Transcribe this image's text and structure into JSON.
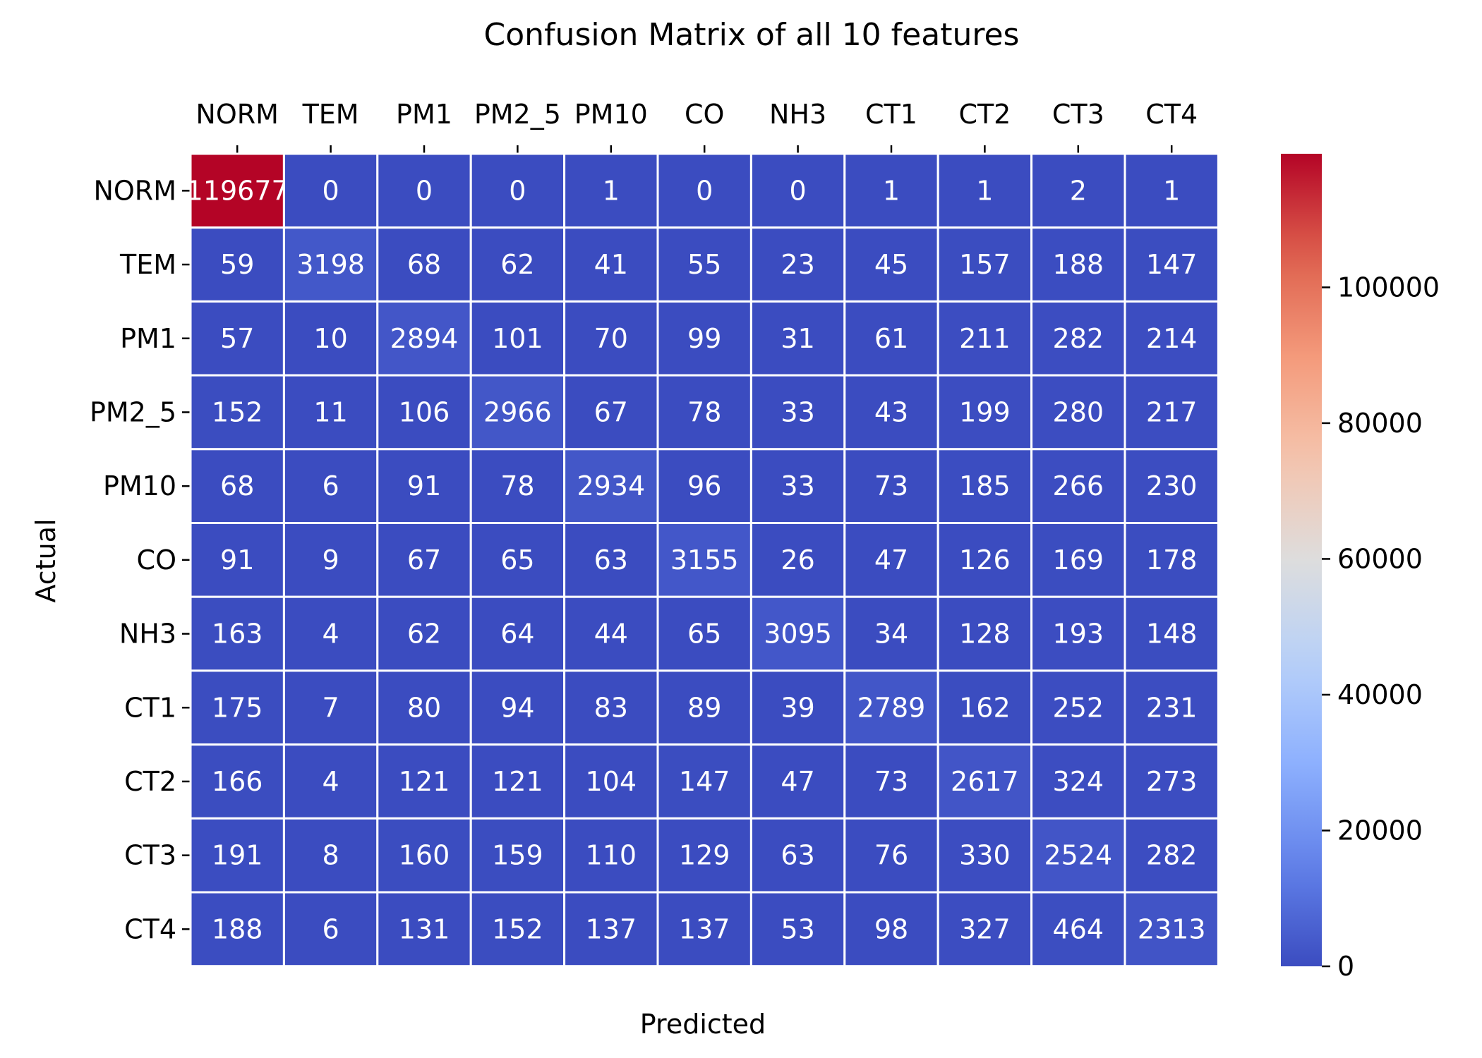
{
  "chart_data": {
    "type": "heatmap",
    "title": "Confusion Matrix of all 10 features",
    "xlabel": "Predicted",
    "ylabel": "Actual",
    "x_categories": [
      "NORM",
      "TEM",
      "PM1",
      "PM2_5",
      "PM10",
      "CO",
      "NH3",
      "CT1",
      "CT2",
      "CT3",
      "CT4"
    ],
    "y_categories": [
      "NORM",
      "TEM",
      "PM1",
      "PM2_5",
      "PM10",
      "CO",
      "NH3",
      "CT1",
      "CT2",
      "CT3",
      "CT4"
    ],
    "x_tick_position": "top",
    "matrix": [
      [
        119677,
        0,
        0,
        0,
        1,
        0,
        0,
        1,
        1,
        2,
        1
      ],
      [
        59,
        3198,
        68,
        62,
        41,
        55,
        23,
        45,
        157,
        188,
        147
      ],
      [
        57,
        10,
        2894,
        101,
        70,
        99,
        31,
        61,
        211,
        282,
        214
      ],
      [
        152,
        11,
        106,
        2966,
        67,
        78,
        33,
        43,
        199,
        280,
        217
      ],
      [
        68,
        6,
        91,
        78,
        2934,
        96,
        33,
        73,
        185,
        266,
        230
      ],
      [
        91,
        9,
        67,
        65,
        63,
        3155,
        26,
        47,
        126,
        169,
        178
      ],
      [
        163,
        4,
        62,
        64,
        44,
        65,
        3095,
        34,
        128,
        193,
        148
      ],
      [
        175,
        7,
        80,
        94,
        83,
        89,
        39,
        2789,
        162,
        252,
        231
      ],
      [
        166,
        4,
        121,
        121,
        104,
        147,
        47,
        73,
        2617,
        324,
        273
      ],
      [
        191,
        8,
        160,
        159,
        110,
        129,
        63,
        76,
        330,
        2524,
        282
      ],
      [
        188,
        6,
        131,
        152,
        137,
        137,
        53,
        98,
        327,
        464,
        2313
      ]
    ],
    "colormap": "coolwarm",
    "colorbar": {
      "range": [
        0,
        119677
      ],
      "ticks": [
        0,
        20000,
        40000,
        60000,
        80000,
        100000
      ]
    },
    "grid": false
  }
}
